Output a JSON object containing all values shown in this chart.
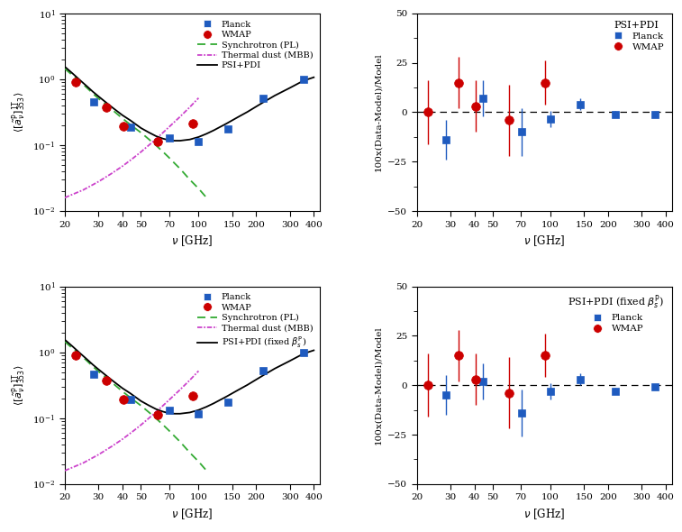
{
  "planck_freqs": [
    28.4,
    44.1,
    70.4,
    100,
    143,
    217,
    353
  ],
  "planck_sed1": [
    0.46,
    0.19,
    0.13,
    0.115,
    0.175,
    0.52,
    1.0
  ],
  "planck_sed2": [
    0.46,
    0.19,
    0.13,
    0.115,
    0.175,
    0.52,
    1.0
  ],
  "wmap_freqs": [
    22.8,
    33.0,
    40.7,
    61.0,
    93.5
  ],
  "wmap_sed1": [
    0.9,
    0.37,
    0.195,
    0.112,
    0.215
  ],
  "wmap_sed2": [
    0.9,
    0.37,
    0.195,
    0.112,
    0.215
  ],
  "model_freq": [
    20,
    22,
    24,
    26,
    28,
    30,
    33,
    36,
    40,
    44,
    50,
    55,
    60,
    65,
    70,
    75,
    80,
    90,
    100,
    110,
    120,
    140,
    160,
    180,
    200,
    220,
    250,
    300,
    353,
    400
  ],
  "model_sed1": [
    1.55,
    1.22,
    0.97,
    0.79,
    0.65,
    0.55,
    0.44,
    0.36,
    0.285,
    0.238,
    0.182,
    0.156,
    0.137,
    0.126,
    0.119,
    0.117,
    0.117,
    0.122,
    0.133,
    0.149,
    0.168,
    0.213,
    0.265,
    0.32,
    0.385,
    0.455,
    0.565,
    0.74,
    0.95,
    1.07
  ],
  "model_sed2": [
    1.55,
    1.22,
    0.97,
    0.79,
    0.65,
    0.55,
    0.44,
    0.36,
    0.285,
    0.238,
    0.182,
    0.156,
    0.137,
    0.126,
    0.119,
    0.117,
    0.117,
    0.122,
    0.133,
    0.149,
    0.168,
    0.213,
    0.265,
    0.32,
    0.385,
    0.455,
    0.565,
    0.74,
    0.95,
    1.07
  ],
  "synch_freq": [
    20,
    22,
    24,
    26,
    28,
    30,
    33,
    36,
    40,
    44,
    50,
    55,
    60,
    65,
    70,
    75,
    80,
    90,
    100,
    110
  ],
  "synch_sed1": [
    1.45,
    1.14,
    0.92,
    0.75,
    0.61,
    0.51,
    0.41,
    0.33,
    0.255,
    0.205,
    0.155,
    0.123,
    0.099,
    0.08,
    0.065,
    0.053,
    0.044,
    0.03,
    0.022,
    0.016
  ],
  "synch_sed2": [
    1.45,
    1.14,
    0.92,
    0.75,
    0.61,
    0.51,
    0.41,
    0.33,
    0.255,
    0.205,
    0.155,
    0.123,
    0.099,
    0.08,
    0.065,
    0.053,
    0.044,
    0.03,
    0.022,
    0.016
  ],
  "dust_freq": [
    20,
    25,
    30,
    35,
    40,
    45,
    50,
    55,
    60,
    65,
    70,
    80,
    90,
    100
  ],
  "dust_sed1": [
    0.016,
    0.021,
    0.028,
    0.037,
    0.048,
    0.062,
    0.079,
    0.1,
    0.125,
    0.154,
    0.188,
    0.27,
    0.378,
    0.52
  ],
  "dust_sed2": [
    0.016,
    0.021,
    0.028,
    0.037,
    0.048,
    0.062,
    0.079,
    0.1,
    0.125,
    0.154,
    0.188,
    0.27,
    0.378,
    0.52
  ],
  "planck_color": "#1f5bbf",
  "wmap_color": "#cc0000",
  "synch_color": "#33aa33",
  "dust_color": "#cc44cc",
  "model_color": "#000000",
  "res1_planck_freqs": [
    28.4,
    44.1,
    70.4,
    100,
    143,
    217,
    353
  ],
  "res1_planck_vals": [
    -14.0,
    7.0,
    -10.0,
    -3.5,
    4.0,
    -1.0,
    -1.0
  ],
  "res1_planck_errs": [
    10.0,
    9.0,
    12.0,
    4.0,
    3.0,
    1.5,
    1.0
  ],
  "res1_wmap_freqs": [
    22.8,
    33.0,
    40.7,
    61.0,
    93.5
  ],
  "res1_wmap_vals": [
    0.0,
    15.0,
    3.0,
    -4.0,
    15.0
  ],
  "res1_wmap_errs": [
    16.0,
    13.0,
    13.0,
    18.0,
    11.0
  ],
  "res2_planck_freqs": [
    28.4,
    44.1,
    70.4,
    100,
    143,
    217,
    353
  ],
  "res2_planck_vals": [
    -5.0,
    2.0,
    -14.0,
    -3.0,
    3.0,
    -3.0,
    -1.0
  ],
  "res2_planck_errs": [
    10.0,
    9.0,
    12.0,
    4.0,
    3.0,
    1.5,
    1.0
  ],
  "res2_wmap_freqs": [
    22.8,
    33.0,
    40.7,
    61.0,
    93.5
  ],
  "res2_wmap_vals": [
    0.0,
    15.0,
    3.0,
    -4.0,
    15.0
  ],
  "res2_wmap_errs": [
    16.0,
    13.0,
    13.0,
    18.0,
    11.0
  ],
  "ylabel_sed": "$\\langle[\\tilde{a}^{\\rm P}_{\\nu}]^{\\rm 1T}_{353}\\rangle$",
  "xlabel": "$\\nu$ [GHz]",
  "ylabel_res": "100x(Data-Model)/Model",
  "xticks_sed": [
    20,
    30,
    40,
    50,
    70,
    100,
    150,
    200,
    300,
    400
  ],
  "xtick_labels_sed": [
    "20",
    "30",
    "40",
    "50",
    "70",
    "100",
    "150",
    "200",
    "300",
    "400"
  ],
  "xticks_res": [
    20,
    30,
    40,
    50,
    70,
    100,
    150,
    200,
    300,
    400
  ],
  "xtick_labels_res": [
    "20",
    "30",
    "40",
    "50",
    "70",
    "100",
    "150",
    "200",
    "300",
    "400"
  ],
  "legend_top_right_title": "PSI+PDI",
  "legend_bot_right_title": "PSI+PDI (fixed $\\beta_s^{\\rm P}$)",
  "legend_top_left_last": "PSI+PDI",
  "legend_bot_left_last": "PSI+PDI (fixed $\\beta_s^{\\rm P}$)"
}
